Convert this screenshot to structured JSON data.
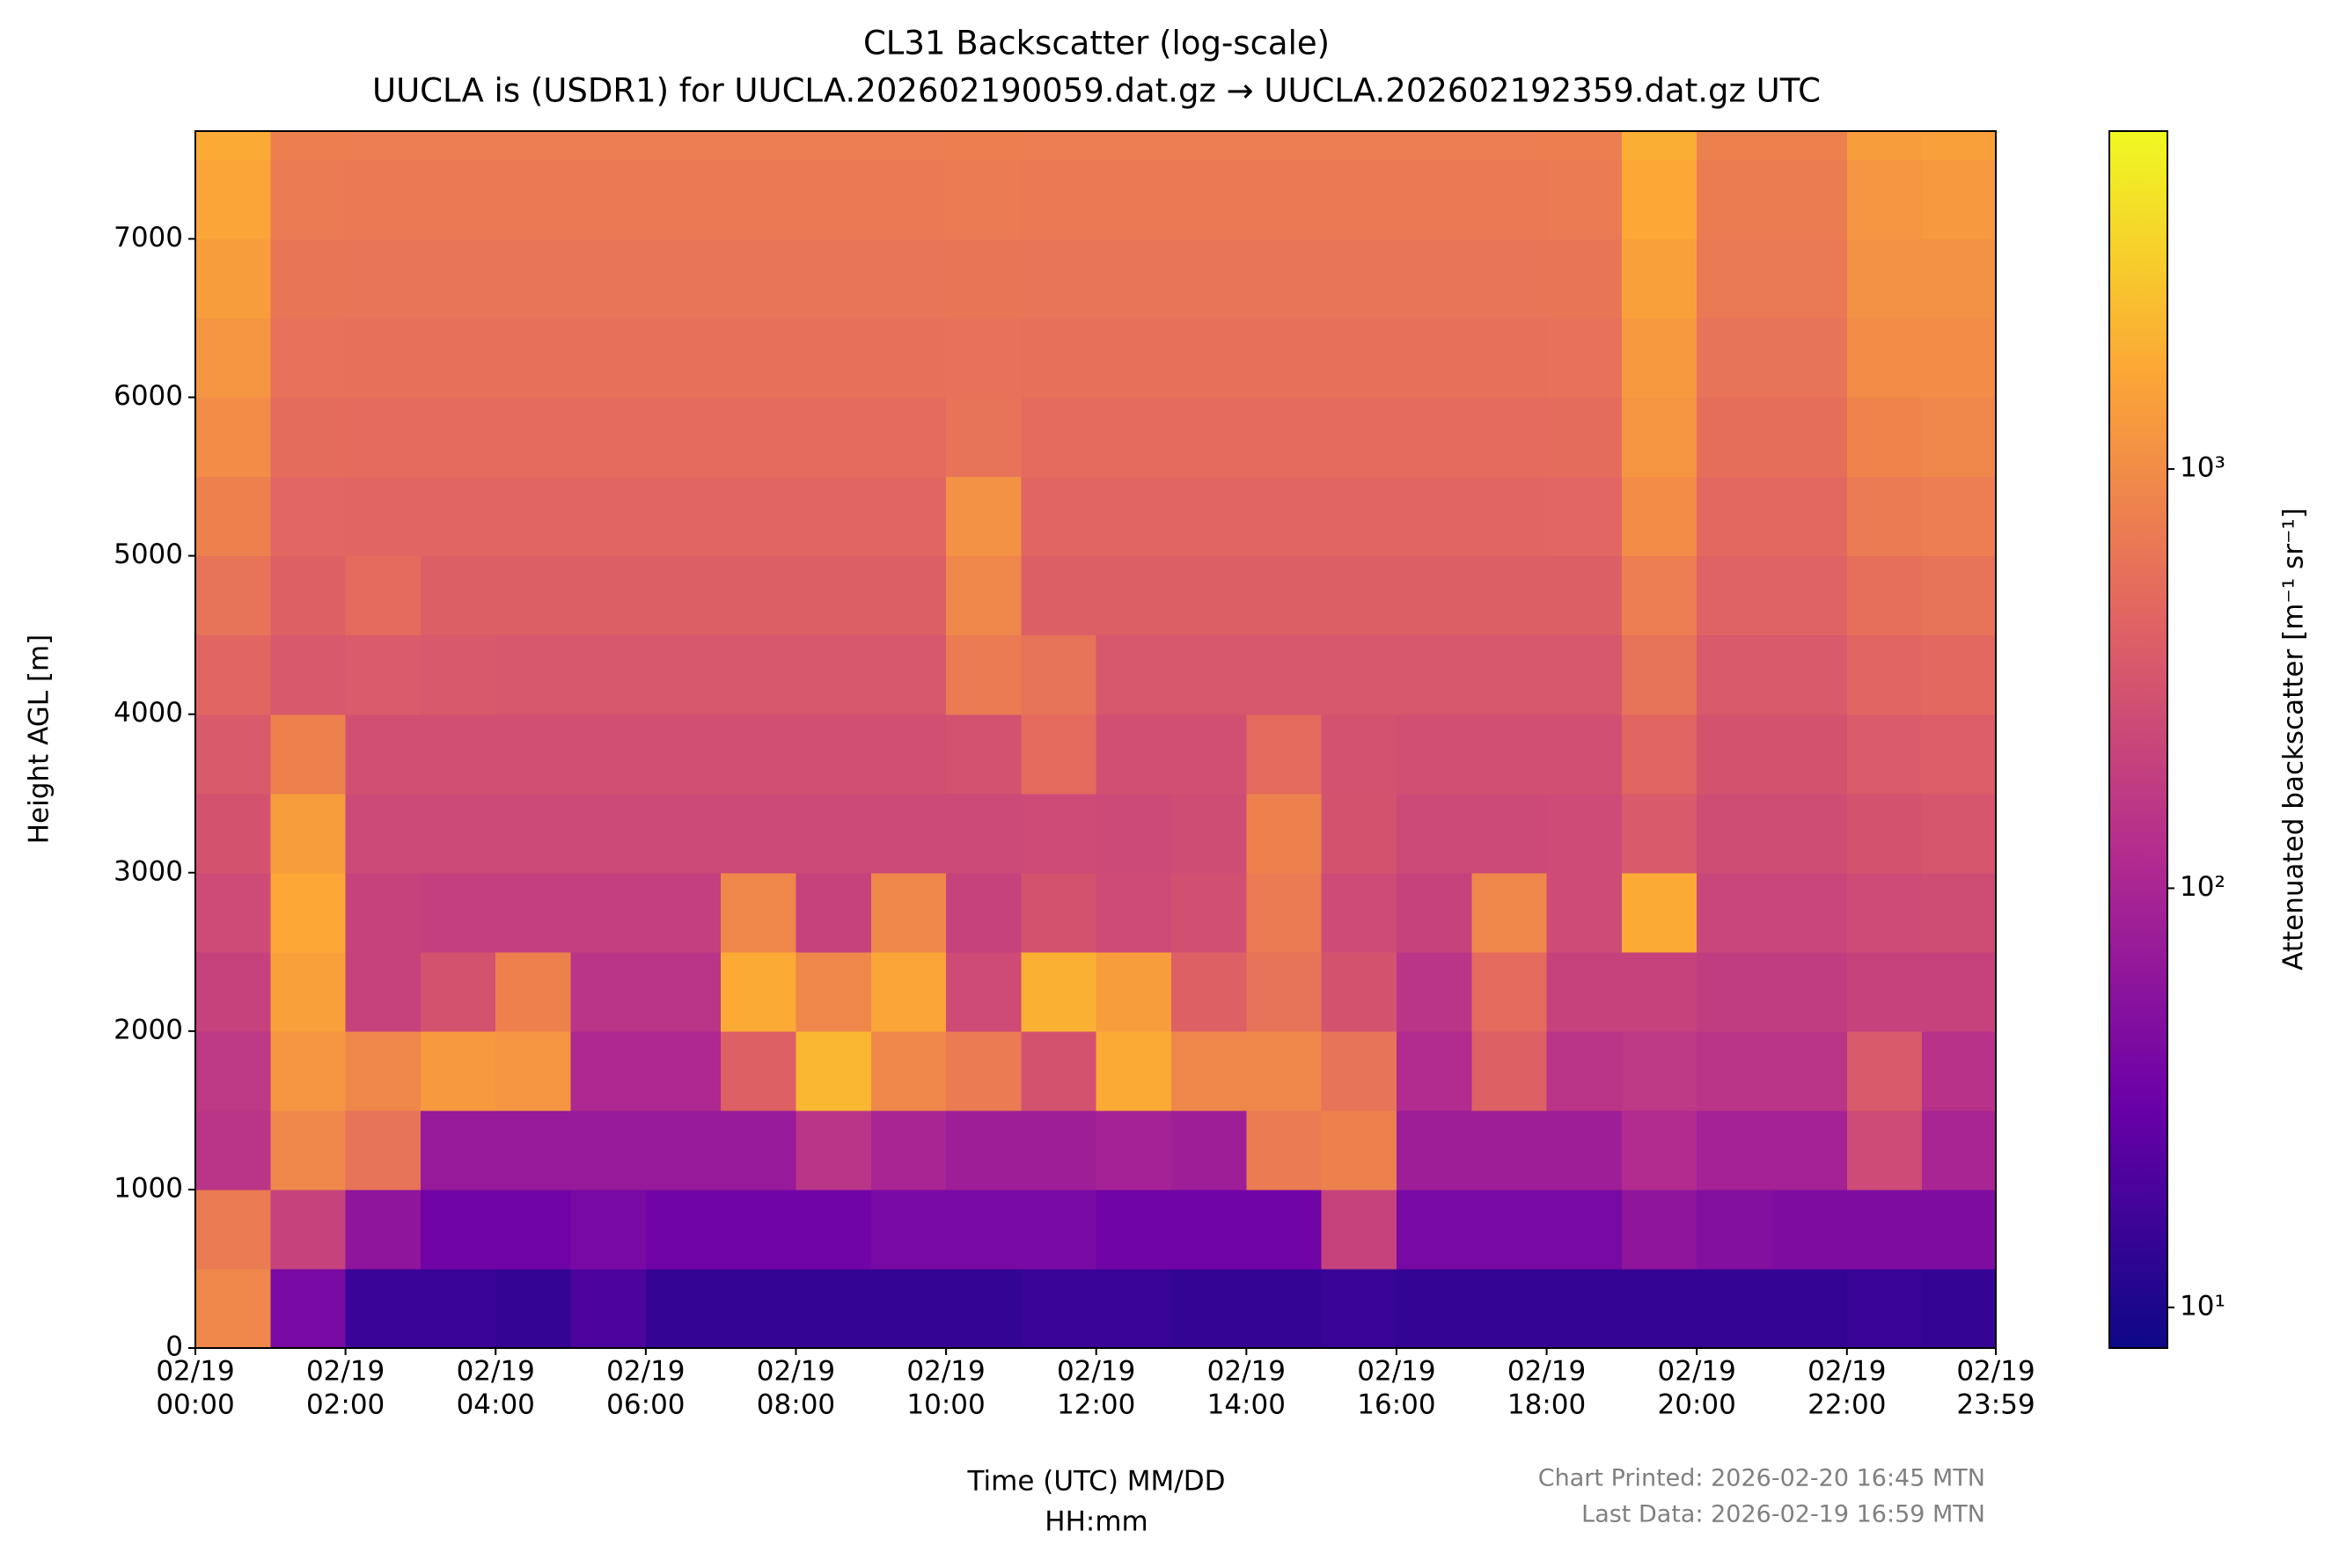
{
  "chart_data": {
    "type": "heatmap",
    "title": "CL31 Backscatter (log-scale)",
    "subtitle": "UUCLA is (USDR1) for UUCLA.202602190059.dat.gz → UUCLA.202602192359.dat.gz UTC",
    "xlabel": [
      "Time (UTC) MM/DD",
      "HH:mm"
    ],
    "ylabel": "Height AGL [m]",
    "colorbar_label": "Attenuated backscatter [m⁻¹ sr⁻¹]",
    "annotations": [
      "Chart Printed: 2026-02-20 16:45 MTN",
      "Last Data: 2026-02-19 16:59 MTN"
    ],
    "xlim": [
      0,
      1439
    ],
    "xticks": [
      {
        "value": 0,
        "label": [
          "02/19",
          "00:00"
        ]
      },
      {
        "value": 120,
        "label": [
          "02/19",
          "02:00"
        ]
      },
      {
        "value": 240,
        "label": [
          "02/19",
          "04:00"
        ]
      },
      {
        "value": 360,
        "label": [
          "02/19",
          "06:00"
        ]
      },
      {
        "value": 480,
        "label": [
          "02/19",
          "08:00"
        ]
      },
      {
        "value": 600,
        "label": [
          "02/19",
          "10:00"
        ]
      },
      {
        "value": 720,
        "label": [
          "02/19",
          "12:00"
        ]
      },
      {
        "value": 840,
        "label": [
          "02/19",
          "14:00"
        ]
      },
      {
        "value": 960,
        "label": [
          "02/19",
          "16:00"
        ]
      },
      {
        "value": 1080,
        "label": [
          "02/19",
          "18:00"
        ]
      },
      {
        "value": 1200,
        "label": [
          "02/19",
          "20:00"
        ]
      },
      {
        "value": 1320,
        "label": [
          "02/19",
          "22:00"
        ]
      },
      {
        "value": 1439,
        "label": [
          "02/19",
          "23:59"
        ]
      }
    ],
    "ylim": [
      0,
      7680
    ],
    "yticks": [
      0,
      1000,
      2000,
      3000,
      4000,
      5000,
      6000,
      7000
    ],
    "x_bins": [
      0,
      60,
      120,
      180,
      240,
      300,
      360,
      420,
      480,
      540,
      600,
      660,
      720,
      780,
      840,
      900,
      960,
      1020,
      1080,
      1140,
      1200,
      1260,
      1320,
      1380,
      1439
    ],
    "y_bins": [
      0,
      500,
      1000,
      1500,
      2000,
      2500,
      3000,
      3500,
      4000,
      4500,
      5000,
      5500,
      6000,
      6500,
      7000,
      7500,
      7680
    ],
    "z": [
      [
        900,
        40,
        15,
        15,
        14,
        20,
        14,
        14,
        14,
        14,
        14,
        15,
        15,
        14,
        14,
        15,
        14,
        14,
        14,
        14,
        14,
        14,
        15,
        14
      ],
      [
        700,
        200,
        60,
        35,
        35,
        40,
        35,
        35,
        35,
        40,
        40,
        40,
        35,
        35,
        35,
        200,
        40,
        40,
        40,
        60,
        50,
        45,
        45,
        45
      ],
      [
        150,
        900,
        600,
        70,
        70,
        70,
        70,
        70,
        150,
        100,
        80,
        80,
        90,
        80,
        700,
        800,
        80,
        80,
        80,
        120,
        90,
        90,
        250,
        100
      ],
      [
        160,
        1200,
        900,
        1300,
        1200,
        110,
        110,
        400,
        2200,
        900,
        700,
        300,
        1800,
        900,
        900,
        600,
        120,
        400,
        150,
        160,
        150,
        150,
        350,
        140
      ],
      [
        200,
        1500,
        200,
        300,
        800,
        150,
        150,
        1800,
        900,
        1600,
        250,
        2000,
        1400,
        400,
        600,
        300,
        150,
        500,
        200,
        200,
        180,
        180,
        200,
        200
      ],
      [
        250,
        1700,
        200,
        190,
        190,
        190,
        190,
        900,
        200,
        900,
        200,
        300,
        250,
        280,
        700,
        250,
        200,
        900,
        250,
        1800,
        220,
        220,
        250,
        260
      ],
      [
        300,
        1400,
        240,
        240,
        240,
        240,
        240,
        240,
        240,
        240,
        240,
        250,
        240,
        260,
        800,
        300,
        240,
        240,
        250,
        350,
        260,
        260,
        300,
        320
      ],
      [
        350,
        800,
        280,
        280,
        280,
        280,
        280,
        280,
        280,
        280,
        290,
        500,
        280,
        280,
        500,
        290,
        280,
        280,
        280,
        450,
        300,
        300,
        360,
        380
      ],
      [
        450,
        340,
        360,
        340,
        330,
        330,
        330,
        330,
        330,
        330,
        700,
        600,
        330,
        330,
        330,
        330,
        330,
        330,
        330,
        600,
        350,
        350,
        450,
        480
      ],
      [
        600,
        400,
        500,
        390,
        390,
        390,
        390,
        390,
        390,
        390,
        900,
        390,
        390,
        390,
        390,
        390,
        390,
        390,
        390,
        750,
        420,
        420,
        550,
        600
      ],
      [
        800,
        460,
        450,
        450,
        450,
        450,
        450,
        450,
        450,
        450,
        1100,
        450,
        450,
        450,
        450,
        450,
        450,
        450,
        460,
        1000,
        480,
        480,
        700,
        750
      ],
      [
        1000,
        520,
        500,
        500,
        500,
        500,
        500,
        500,
        500,
        500,
        600,
        500,
        500,
        500,
        500,
        500,
        500,
        500,
        520,
        1200,
        540,
        540,
        850,
        900
      ],
      [
        1200,
        580,
        560,
        560,
        560,
        560,
        560,
        560,
        560,
        560,
        580,
        560,
        560,
        560,
        560,
        560,
        560,
        560,
        580,
        1300,
        600,
        600,
        1000,
        1000
      ],
      [
        1400,
        640,
        620,
        620,
        620,
        620,
        620,
        620,
        620,
        620,
        640,
        620,
        620,
        620,
        620,
        620,
        620,
        620,
        640,
        1500,
        660,
        660,
        1100,
        1100
      ],
      [
        1600,
        700,
        680,
        680,
        680,
        680,
        680,
        680,
        680,
        680,
        700,
        680,
        680,
        680,
        680,
        680,
        680,
        680,
        700,
        1700,
        720,
        720,
        1200,
        1300
      ],
      [
        1800,
        770,
        750,
        750,
        750,
        750,
        750,
        750,
        750,
        750,
        770,
        750,
        750,
        750,
        750,
        750,
        750,
        750,
        770,
        1900,
        800,
        800,
        1400,
        1500
      ]
    ],
    "color_scale": "log",
    "clim": [
      8,
      6400
    ],
    "cticks": [
      {
        "value": 10,
        "label": "10¹"
      },
      {
        "value": 100,
        "label": "10²"
      },
      {
        "value": 1000,
        "label": "10³"
      }
    ],
    "colormap": [
      "#0d0887",
      "#6a00a8",
      "#b12a90",
      "#e16462",
      "#fca636",
      "#f0f921"
    ]
  }
}
